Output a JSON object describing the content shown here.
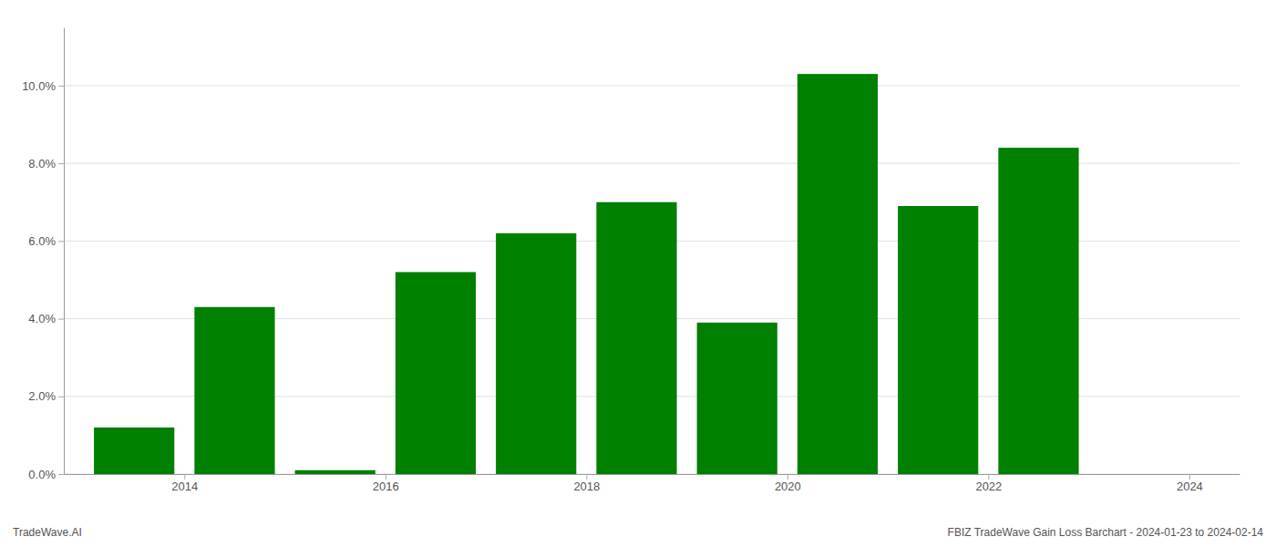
{
  "chart_data": {
    "type": "bar",
    "x": [
      2014,
      2015,
      2016,
      2017,
      2018,
      2019,
      2020,
      2021,
      2022,
      2023
    ],
    "values": [
      0.012,
      0.043,
      0.001,
      0.052,
      0.062,
      0.07,
      0.039,
      0.103,
      0.069,
      0.084
    ],
    "color": "#008000",
    "xlim": [
      2013.3,
      2025.0
    ],
    "xticks": [
      {
        "value": 2014.5,
        "label": "2014"
      },
      {
        "value": 2016.5,
        "label": "2016"
      },
      {
        "value": 2018.5,
        "label": "2018"
      },
      {
        "value": 2020.5,
        "label": "2020"
      },
      {
        "value": 2022.5,
        "label": "2022"
      },
      {
        "value": 2024.5,
        "label": "2024"
      }
    ],
    "ylim": [
      0,
      0.115
    ],
    "yticks": [
      {
        "value": 0.0,
        "label": "0.0%"
      },
      {
        "value": 0.02,
        "label": "2.0%"
      },
      {
        "value": 0.04,
        "label": "4.0%"
      },
      {
        "value": 0.06,
        "label": "6.0%"
      },
      {
        "value": 0.08,
        "label": "8.0%"
      },
      {
        "value": 0.1,
        "label": "10.0%"
      }
    ],
    "grid": "y",
    "annotations": [
      "TradeWave.AI",
      "FBIZ TradeWave Gain Loss Barchart - 2024-01-23 to 2024-02-14"
    ]
  }
}
